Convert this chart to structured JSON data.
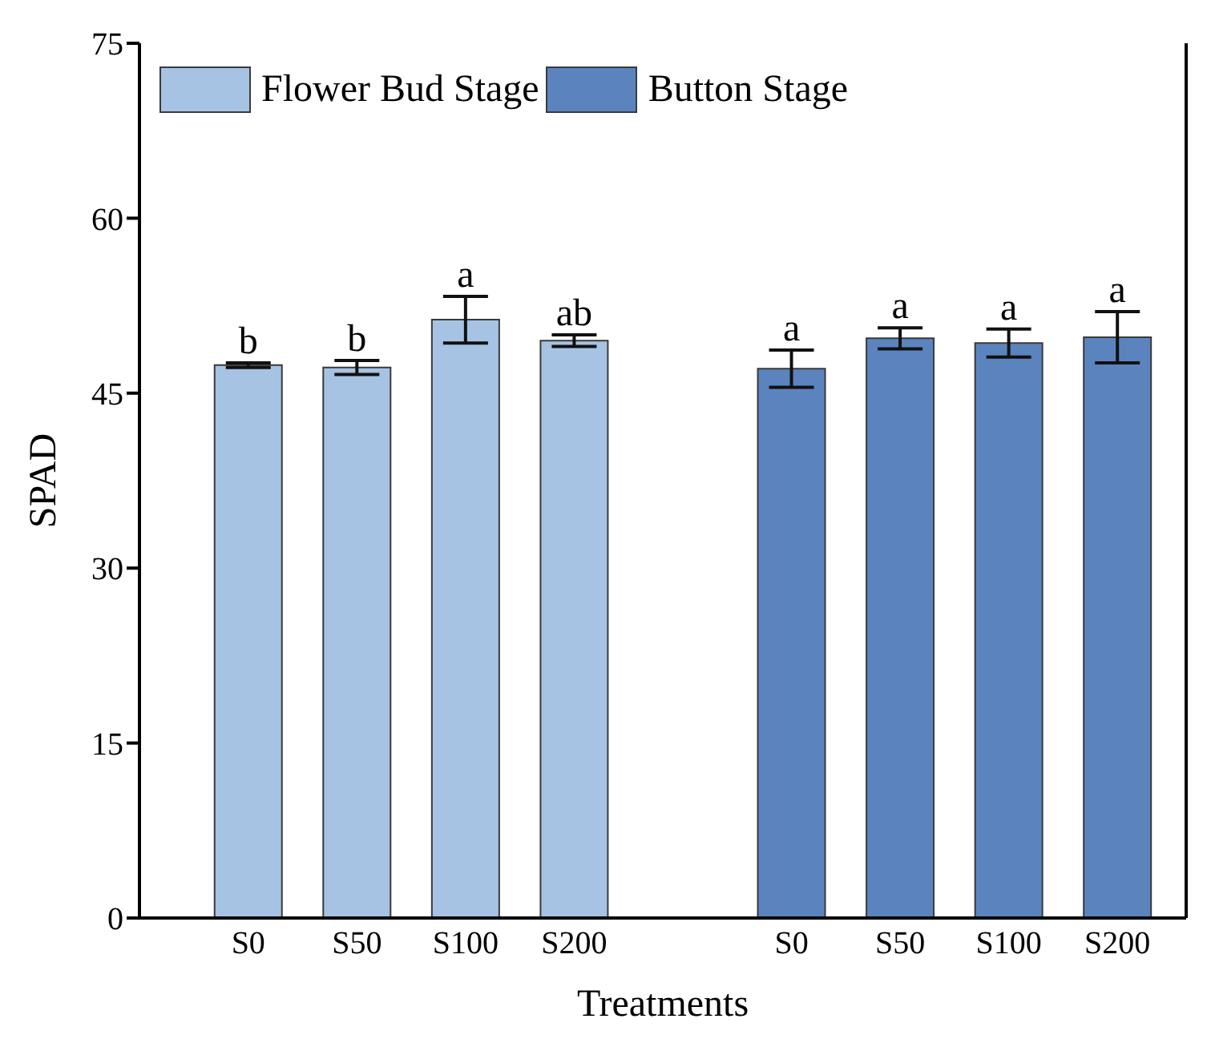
{
  "chart_data": {
    "type": "bar",
    "xlabel": "Treatments",
    "ylabel": "SPAD",
    "categories": [
      "S0",
      "S50",
      "S100",
      "S200",
      null,
      "S0",
      "S50",
      "S100",
      "S200"
    ],
    "series": [
      {
        "name": "Flower Bud Stage",
        "color": "#a7c3e3",
        "values": [
          47.4,
          47.2,
          51.3,
          49.5,
          null,
          null,
          null,
          null,
          null
        ],
        "errors": [
          0.2,
          0.6,
          2.0,
          0.5,
          null,
          null,
          null,
          null,
          null
        ],
        "value_labels": [
          "b",
          "b",
          "a",
          "ab",
          null,
          null,
          null,
          null,
          null
        ]
      },
      {
        "name": "Button Stage",
        "color": "#5b84bf",
        "values": [
          null,
          null,
          null,
          null,
          null,
          47.1,
          49.7,
          49.3,
          49.8
        ],
        "errors": [
          null,
          null,
          null,
          null,
          null,
          1.6,
          0.9,
          1.2,
          2.2
        ],
        "value_labels": [
          null,
          null,
          null,
          null,
          null,
          "a",
          "a",
          "a",
          "a"
        ]
      }
    ],
    "ylim": [
      0,
      75
    ],
    "yticks": [
      0,
      15,
      30,
      45,
      60,
      75
    ],
    "legend": "top left"
  }
}
